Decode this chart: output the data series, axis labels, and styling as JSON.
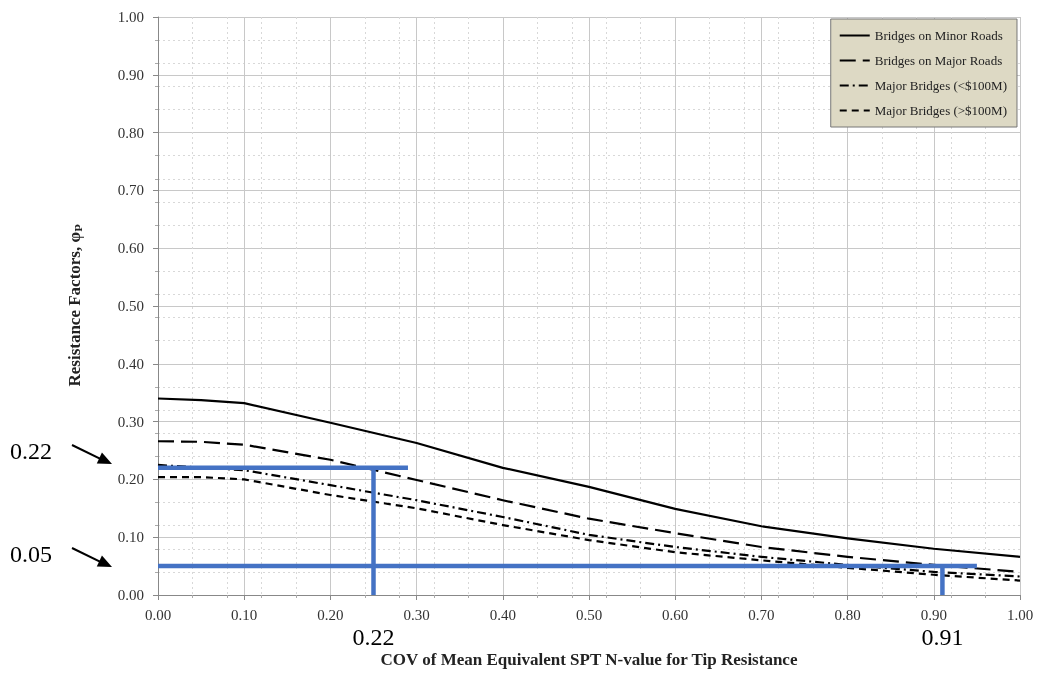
{
  "chart_data": {
    "type": "line",
    "xlabel": "COV of Mean Equivalent SPT N-value for Tip Resistance",
    "ylabel": "Resistance Factors, φₚ",
    "xlim": [
      0,
      1
    ],
    "xticks": [
      {
        "value": 0,
        "label": "0.00"
      },
      {
        "value": 0.1,
        "label": "0.10"
      },
      {
        "value": 0.2,
        "label": "0.20"
      },
      {
        "value": 0.3,
        "label": "0.30"
      },
      {
        "value": 0.4,
        "label": "0.40"
      },
      {
        "value": 0.5,
        "label": "0.50"
      },
      {
        "value": 0.6,
        "label": "0.60"
      },
      {
        "value": 0.7,
        "label": "0.70"
      },
      {
        "value": 0.8,
        "label": "0.80"
      },
      {
        "value": 0.9,
        "label": "0.90"
      },
      {
        "value": 1,
        "label": "1.00"
      }
    ],
    "ylim": [
      0,
      1
    ],
    "yticks": [
      {
        "value": 0,
        "label": "0.00"
      },
      {
        "value": 0.1,
        "label": "0.10"
      },
      {
        "value": 0.2,
        "label": "0.20"
      },
      {
        "value": 0.3,
        "label": "0.30"
      },
      {
        "value": 0.4,
        "label": "0.40"
      },
      {
        "value": 0.5,
        "label": "0.50"
      },
      {
        "value": 0.6,
        "label": "0.60"
      },
      {
        "value": 0.7,
        "label": "0.70"
      },
      {
        "value": 0.8,
        "label": "0.80"
      },
      {
        "value": 0.9,
        "label": "0.90"
      },
      {
        "value": 1,
        "label": "1.00"
      }
    ],
    "grid": true,
    "legend": "top right",
    "marker": "none",
    "series": [
      {
        "name": "Bridges on Minor Roads",
        "color": "#000000",
        "line_style": "solid",
        "x": [
          0,
          0.05,
          0.1,
          0.2,
          0.3,
          0.4,
          0.5,
          0.6,
          0.7,
          0.8,
          0.9,
          1.0
        ],
        "values": [
          0.34,
          0.337,
          0.332,
          0.298,
          0.263,
          0.22,
          0.187,
          0.149,
          0.119,
          0.098,
          0.08,
          0.066
        ]
      },
      {
        "name": "Bridges on Major Roads",
        "color": "#000000",
        "line_style": "dashed",
        "x": [
          0,
          0.05,
          0.1,
          0.2,
          0.3,
          0.4,
          0.5,
          0.6,
          0.7,
          0.8,
          0.9,
          1.0
        ],
        "values": [
          0.266,
          0.265,
          0.26,
          0.234,
          0.199,
          0.164,
          0.132,
          0.107,
          0.083,
          0.066,
          0.052,
          0.04
        ]
      },
      {
        "name": "Major Bridges (<$100M)",
        "color": "#000000",
        "line_style": "dotted",
        "x": [
          0,
          0.1,
          0.2,
          0.3,
          0.4,
          0.5,
          0.6,
          0.7,
          0.8,
          0.9,
          1.0
        ],
        "values": [
          0.225,
          0.216,
          0.19,
          0.164,
          0.135,
          0.104,
          0.083,
          0.066,
          0.052,
          0.04,
          0.032
        ]
      },
      {
        "name": "Major Bridges (>$100M)",
        "color": "#000000",
        "line_style": "dashed",
        "x": [
          0,
          0.05,
          0.1,
          0.2,
          0.3,
          0.4,
          0.5,
          0.6,
          0.7,
          0.8,
          0.9,
          1.0
        ],
        "values": [
          0.204,
          0.204,
          0.2,
          0.173,
          0.15,
          0.121,
          0.095,
          0.074,
          0.06,
          0.047,
          0.035,
          0.025
        ]
      },
      {
        "color": "#4472c4",
        "line_style": "solid",
        "x": [
          0,
          0.29
        ],
        "values": [
          0.22,
          0.22
        ]
      },
      {
        "color": "#4472c4",
        "line_style": "solid",
        "x": [
          0.25,
          0.25
        ],
        "values": [
          0,
          0.22
        ]
      },
      {
        "color": "#4472c4",
        "line_style": "solid",
        "x": [
          0,
          0.95
        ],
        "values": [
          0.05,
          0.05
        ]
      },
      {
        "color": "#4472c4",
        "line_style": "solid",
        "x": [
          0.91,
          0.91
        ],
        "values": [
          0,
          0.05
        ]
      }
    ],
    "annotations": [
      "0.22",
      "0.05",
      {
        "text": "0.22",
        "x": 0.25,
        "y": 0
      },
      {
        "text": "0.91",
        "x": 0.91,
        "y": 0
      }
    ]
  }
}
